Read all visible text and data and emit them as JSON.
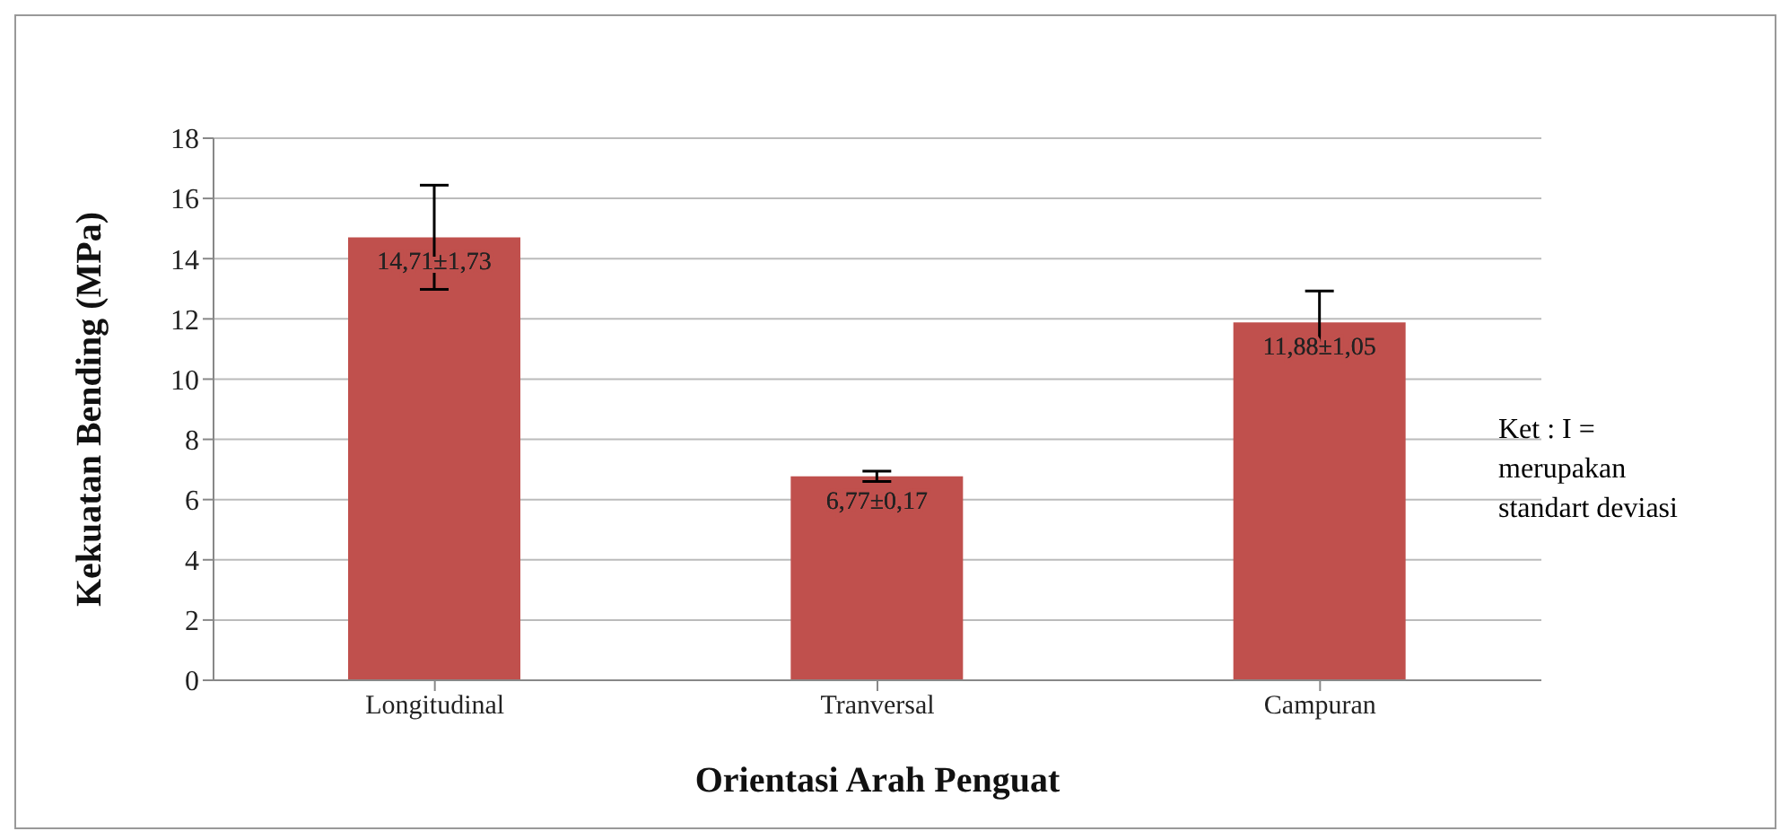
{
  "chart_data": {
    "type": "bar",
    "xlabel": "Orientasi Arah Penguat",
    "ylabel": "Kekuatan Bending (MPa)",
    "categories": [
      "Longitudinal",
      "Tranversal",
      "Campuran"
    ],
    "values": [
      14.71,
      6.77,
      11.88
    ],
    "errors": [
      1.73,
      0.17,
      1.05
    ],
    "value_labels": [
      "14,71±1,73",
      "6,77±0,17",
      "11,88±1,05"
    ],
    "color": "#c0504d",
    "ylim": [
      0,
      18
    ],
    "yticks": [
      0,
      2,
      4,
      6,
      8,
      10,
      12,
      14,
      16,
      18
    ],
    "grid": "y",
    "annotations": [
      "Ket : I = merupakan standart deviasi"
    ]
  }
}
